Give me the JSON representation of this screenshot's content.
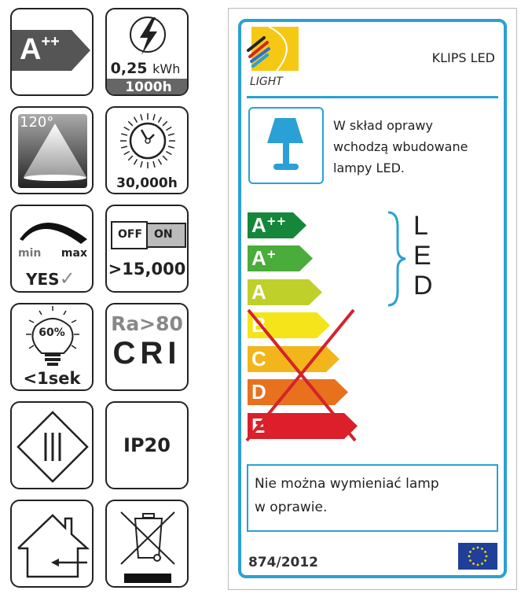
{
  "icons": {
    "energy_class": {
      "label": "A",
      "sup": "++"
    },
    "consumption": {
      "value": "0,25",
      "unit": "kWh",
      "hours": "1000h"
    },
    "beam_angle": "120°",
    "lifetime": "30,000h",
    "dimmable": {
      "min": "min",
      "max": "max",
      "answer": "YES",
      "check": "✓"
    },
    "switching": {
      "off": "OFF",
      "on": "ON",
      "cycles": ">15,000"
    },
    "warmup": {
      "percent": "60%",
      "time": "<1sek"
    },
    "cri": {
      "ra": "Ra>80",
      "label": "CRI"
    },
    "protection_class": "III",
    "ip": "IP20"
  },
  "label": {
    "brand": "LIGHT",
    "product": "KLIPS LED",
    "description": [
      "W skład oprawy",
      "wchodzą wbudowane",
      "lampy LED."
    ],
    "led_vertical": [
      "L",
      "E",
      "D"
    ],
    "classes": [
      {
        "label": "A",
        "sup": "++",
        "color": "#15873b"
      },
      {
        "label": "A",
        "sup": "+",
        "color": "#4aac3a"
      },
      {
        "label": "A",
        "sup": "",
        "color": "#bfd02a"
      },
      {
        "label": "B",
        "sup": "",
        "color": "#f5e41a"
      },
      {
        "label": "C",
        "sup": "",
        "color": "#f2b51c"
      },
      {
        "label": "D",
        "sup": "",
        "color": "#e8711e"
      },
      {
        "label": "E",
        "sup": "",
        "color": "#dc1f2a"
      }
    ],
    "note": [
      "Nie można wymieniać lamp",
      "w oprawie."
    ],
    "regulation": "874/2012",
    "accent": "#2aa0d6",
    "cross_color": "#d4232b"
  }
}
